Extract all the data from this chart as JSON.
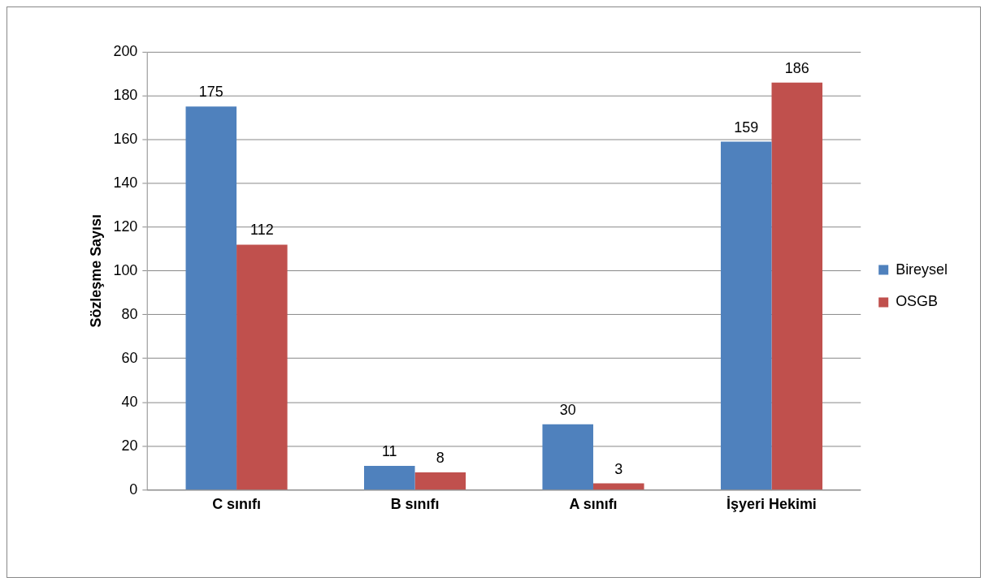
{
  "chart_data": {
    "type": "bar",
    "ylabel": "Sözleşme Sayısı",
    "categories": [
      "C sınıfı",
      "B sınıfı",
      "A sınıfı",
      "İşyeri Hekimi"
    ],
    "series": [
      {
        "name": "Bireysel",
        "color": "#4f81bd",
        "values": [
          175,
          11,
          30,
          159
        ]
      },
      {
        "name": "OSGB",
        "color": "#c0504d",
        "values": [
          112,
          8,
          3,
          186
        ]
      }
    ],
    "ylim": [
      0,
      200
    ],
    "yticks": [
      0,
      20,
      40,
      60,
      80,
      100,
      120,
      140,
      160,
      180,
      200
    ],
    "grid": "y",
    "legend": "right",
    "data_labels": true
  }
}
